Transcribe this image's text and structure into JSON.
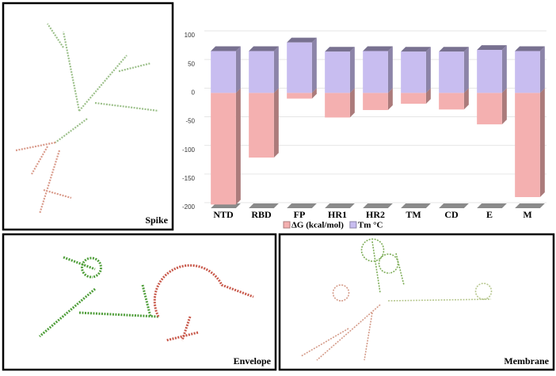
{
  "chart_data": {
    "type": "bar",
    "stacked": true,
    "categories": [
      "NTD",
      "RBD",
      "FP",
      "HR1",
      "HR2",
      "TM",
      "CD",
      "E",
      "M"
    ],
    "series": [
      {
        "name": "ΔG (kcal/mol)",
        "color": "#f4b0b0",
        "values": [
          -195,
          -113,
          -10,
          -43,
          -30,
          -19,
          -29,
          -55,
          -182
        ]
      },
      {
        "name": "Tm °C",
        "color": "#c8bdf0",
        "values": [
          73,
          73,
          88,
          72,
          73,
          72,
          72,
          75,
          73
        ]
      }
    ],
    "ylim": [
      -200,
      100
    ],
    "yticks": [
      -200,
      -150,
      -100,
      -50,
      0,
      50,
      100
    ],
    "grid": true,
    "legend": "bottom"
  },
  "panels": [
    {
      "label": "Spike"
    },
    {
      "label": "Envelope"
    },
    {
      "label": "Membrane"
    }
  ]
}
